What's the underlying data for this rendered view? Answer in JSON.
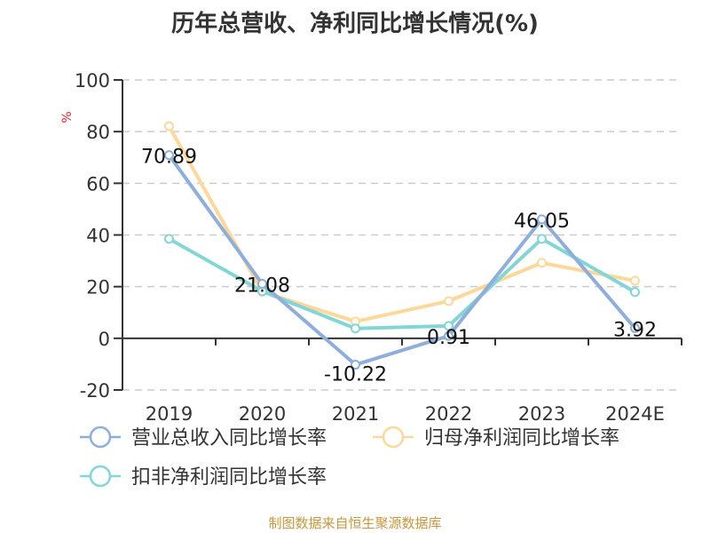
{
  "title": "历年总营收、净利同比增长情况(%)",
  "footer": "制图数据来自恒生聚源数据库",
  "y_unit_label": "%",
  "colors": {
    "revenue": "#8eaedb",
    "net_profit": "#fdd89a",
    "deducted_profit": "#83d6d6",
    "axis": "#333333",
    "grid": "#cccccc",
    "unit_label": "#e0262b",
    "footer": "#c8963c"
  },
  "chart_data": {
    "type": "line",
    "title": "历年总营收、净利同比增长情况(%)",
    "xlabel": "",
    "ylabel": "%",
    "ylim": [
      -20,
      100
    ],
    "yticks": [
      -20,
      0,
      20,
      40,
      60,
      80,
      100
    ],
    "grid": true,
    "legend_position": "bottom",
    "categories": [
      "2019",
      "2020",
      "2021",
      "2022",
      "2023",
      "2024E"
    ],
    "series": [
      {
        "name": "营业总收入同比增长率",
        "values": [
          70.89,
          21.08,
          -10.22,
          0.91,
          46.05,
          3.92
        ],
        "labeled": true
      },
      {
        "name": "归母净利润同比增长率",
        "values": [
          82.1,
          18.0,
          6.5,
          14.4,
          29.2,
          22.3
        ],
        "labeled": false
      },
      {
        "name": "扣非净利润同比增长率",
        "values": [
          38.5,
          18.2,
          3.8,
          4.8,
          38.5,
          17.9
        ],
        "labeled": false
      }
    ]
  }
}
